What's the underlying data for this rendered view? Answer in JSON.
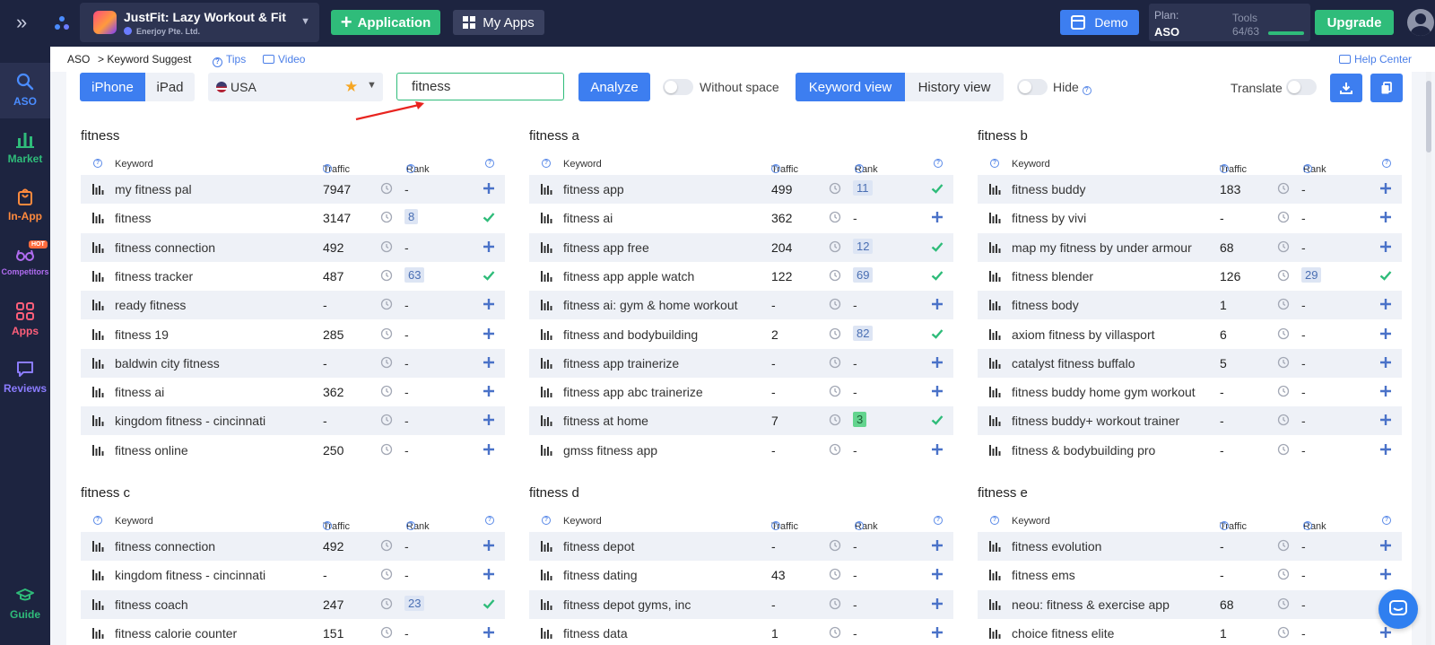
{
  "topbar": {
    "app_name": "JustFit: Lazy Workout & Fit",
    "developer": "Enerjoy Pte. Ltd.",
    "application_button": "Application",
    "myapps_button": "My Apps",
    "demo_button": "Demo",
    "plan_label": "Plan:",
    "plan_value": "ASO",
    "tools_label": "Tools",
    "tools_value": "64/63",
    "tools_progress": 1.0,
    "upgrade_button": "Upgrade"
  },
  "sidebar": {
    "items": [
      {
        "label": "ASO",
        "color": "#4a8cff",
        "icon": "search-icon"
      },
      {
        "label": "Market",
        "color": "#2fbc7a",
        "icon": "bar-chart-icon"
      },
      {
        "label": "In-App",
        "color": "#ff8a3d",
        "icon": "shopping-bag-icon"
      },
      {
        "label": "Competitors",
        "color": "#b06cf0",
        "icon": "glasses-icon",
        "badge": "HOT"
      },
      {
        "label": "Apps",
        "color": "#ff5f7a",
        "icon": "apps-grid-icon"
      },
      {
        "label": "Reviews",
        "color": "#8b7cff",
        "icon": "chat-icon"
      },
      {
        "label": "Guide",
        "color": "#2fbc7a",
        "icon": "graduation-cap-icon"
      }
    ]
  },
  "breadcrumb": {
    "root": "ASO",
    "current": "> Keyword Suggest",
    "tips": "Tips",
    "video": "Video",
    "help": "Help Center"
  },
  "toolbar": {
    "device_iphone": "iPhone",
    "device_ipad": "iPad",
    "country": "USA",
    "search_value": "fitness",
    "analyze": "Analyze",
    "without_space": "Without space",
    "keyword_view": "Keyword view",
    "history_view": "History view",
    "hide": "Hide",
    "translate": "Translate"
  },
  "columns": {
    "keyword": "Keyword",
    "traffic": "Traffic",
    "rank": "Rank"
  },
  "tables": [
    {
      "title": "fitness",
      "rows": [
        {
          "keyword": "my fitness pal",
          "traffic": "7947",
          "rank": "-",
          "added": false
        },
        {
          "keyword": "fitness",
          "traffic": "3147",
          "rank": "8",
          "added": true
        },
        {
          "keyword": "fitness connection",
          "traffic": "492",
          "rank": "-",
          "added": false
        },
        {
          "keyword": "fitness tracker",
          "traffic": "487",
          "rank": "63",
          "added": true
        },
        {
          "keyword": "ready fitness",
          "traffic": "-",
          "rank": "-",
          "added": false
        },
        {
          "keyword": "fitness 19",
          "traffic": "285",
          "rank": "-",
          "added": false
        },
        {
          "keyword": "baldwin city fitness",
          "traffic": "-",
          "rank": "-",
          "added": false
        },
        {
          "keyword": "fitness ai",
          "traffic": "362",
          "rank": "-",
          "added": false
        },
        {
          "keyword": "kingdom fitness - cincinnati",
          "traffic": "-",
          "rank": "-",
          "added": false
        },
        {
          "keyword": "fitness online",
          "traffic": "250",
          "rank": "-",
          "added": false
        }
      ]
    },
    {
      "title": "fitness a",
      "rows": [
        {
          "keyword": "fitness app",
          "traffic": "499",
          "rank": "11",
          "added": true
        },
        {
          "keyword": "fitness ai",
          "traffic": "362",
          "rank": "-",
          "added": false
        },
        {
          "keyword": "fitness app free",
          "traffic": "204",
          "rank": "12",
          "added": true
        },
        {
          "keyword": "fitness app apple watch",
          "traffic": "122",
          "rank": "69",
          "added": true
        },
        {
          "keyword": "fitness ai: gym & home workout",
          "traffic": "-",
          "rank": "-",
          "added": false
        },
        {
          "keyword": "fitness and bodybuilding",
          "traffic": "2",
          "rank": "82",
          "added": true
        },
        {
          "keyword": "fitness app trainerize",
          "traffic": "-",
          "rank": "-",
          "added": false
        },
        {
          "keyword": "fitness app abc trainerize",
          "traffic": "-",
          "rank": "-",
          "added": false
        },
        {
          "keyword": "fitness at home",
          "traffic": "7",
          "rank": "3",
          "added": true,
          "top": true
        },
        {
          "keyword": "gmss fitness app",
          "traffic": "-",
          "rank": "-",
          "added": false
        }
      ]
    },
    {
      "title": "fitness b",
      "rows": [
        {
          "keyword": "fitness buddy",
          "traffic": "183",
          "rank": "-",
          "added": false
        },
        {
          "keyword": "fitness by vivi",
          "traffic": "-",
          "rank": "-",
          "added": false
        },
        {
          "keyword": "map my fitness by under armour",
          "traffic": "68",
          "rank": "-",
          "added": false
        },
        {
          "keyword": "fitness blender",
          "traffic": "126",
          "rank": "29",
          "added": true
        },
        {
          "keyword": "fitness body",
          "traffic": "1",
          "rank": "-",
          "added": false
        },
        {
          "keyword": "axiom fitness by villasport",
          "traffic": "6",
          "rank": "-",
          "added": false
        },
        {
          "keyword": "catalyst fitness buffalo",
          "traffic": "5",
          "rank": "-",
          "added": false
        },
        {
          "keyword": "fitness buddy home gym workout",
          "traffic": "-",
          "rank": "-",
          "added": false
        },
        {
          "keyword": "fitness buddy+ workout trainer",
          "traffic": "-",
          "rank": "-",
          "added": false
        },
        {
          "keyword": "fitness & bodybuilding pro",
          "traffic": "-",
          "rank": "-",
          "added": false
        }
      ]
    },
    {
      "title": "fitness c",
      "rows": [
        {
          "keyword": "fitness connection",
          "traffic": "492",
          "rank": "-",
          "added": false
        },
        {
          "keyword": "kingdom fitness - cincinnati",
          "traffic": "-",
          "rank": "-",
          "added": false
        },
        {
          "keyword": "fitness coach",
          "traffic": "247",
          "rank": "23",
          "added": true
        },
        {
          "keyword": "fitness calorie counter",
          "traffic": "151",
          "rank": "-",
          "added": false
        }
      ]
    },
    {
      "title": "fitness d",
      "rows": [
        {
          "keyword": "fitness depot",
          "traffic": "-",
          "rank": "-",
          "added": false
        },
        {
          "keyword": "fitness dating",
          "traffic": "43",
          "rank": "-",
          "added": false
        },
        {
          "keyword": "fitness depot gyms, inc",
          "traffic": "-",
          "rank": "-",
          "added": false
        },
        {
          "keyword": "fitness data",
          "traffic": "1",
          "rank": "-",
          "added": false
        }
      ]
    },
    {
      "title": "fitness e",
      "rows": [
        {
          "keyword": "fitness evolution",
          "traffic": "-",
          "rank": "-",
          "added": false
        },
        {
          "keyword": "fitness ems",
          "traffic": "-",
          "rank": "-",
          "added": false
        },
        {
          "keyword": "neou: fitness & exercise app",
          "traffic": "68",
          "rank": "-",
          "added": false
        },
        {
          "keyword": "choice fitness elite",
          "traffic": "1",
          "rank": "-",
          "added": false
        }
      ]
    }
  ],
  "colors": {
    "accent_blue": "#3d7ef0",
    "accent_green": "#2fbc7a",
    "nav_bg": "#1d2440"
  }
}
